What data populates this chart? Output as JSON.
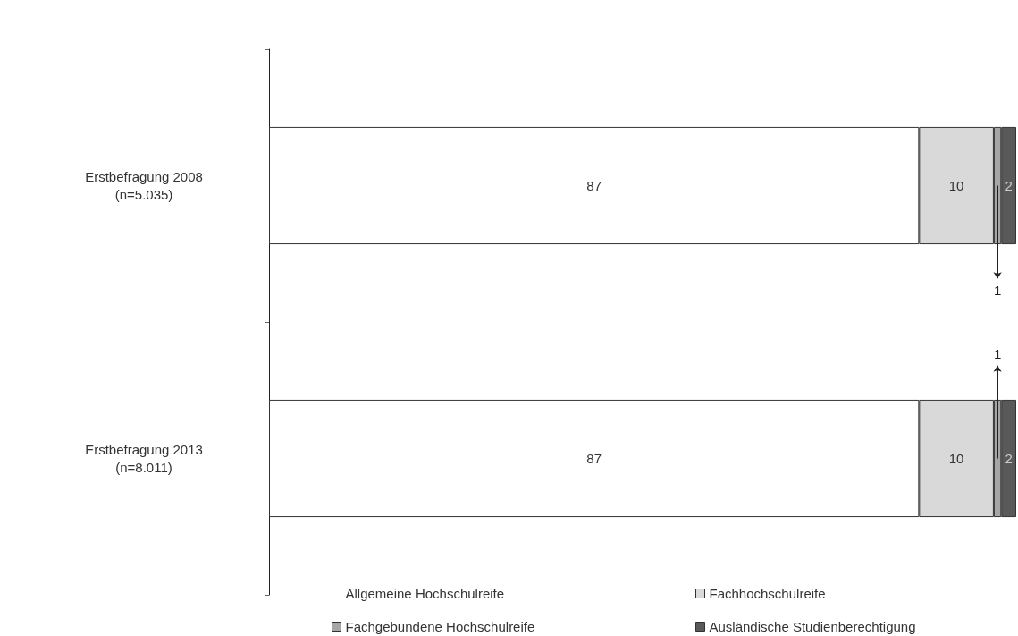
{
  "chart_data": {
    "type": "bar",
    "orientation": "horizontal",
    "stacked": true,
    "legend": "bottom",
    "tick_labels": "y",
    "xlim": [
      0,
      100
    ],
    "categories": [
      "Erstbefragung 2008\n(n=5.035)",
      "Erstbefragung 2013\n(n=8.011)"
    ],
    "series": [
      {
        "name": "Allgemeine Hochschulreife",
        "color": "#ffffff",
        "values": [
          87,
          87
        ],
        "value_labels": [
          "87",
          "87"
        ]
      },
      {
        "name": "Fachhochschulreife",
        "color": "#d9d9d9",
        "values": [
          10,
          10
        ],
        "value_labels": [
          "10",
          "10"
        ]
      },
      {
        "name": "Fachgebundene Hochschulreife",
        "color": "#a6a6a6",
        "values": [
          1,
          1
        ]
      },
      {
        "name": "Ausländische Studienberechtigung",
        "color": "#595959",
        "values": [
          2,
          2
        ],
        "value_labels": [
          "2",
          "2"
        ]
      }
    ],
    "annotations": [
      {
        "text": "1",
        "x": 97.5,
        "y": "Erstbefragung 2008\n(n=5.035)"
      },
      {
        "text": "1",
        "x": 97.5,
        "y": "Erstbefragung 2013\n(n=8.011)"
      }
    ]
  }
}
